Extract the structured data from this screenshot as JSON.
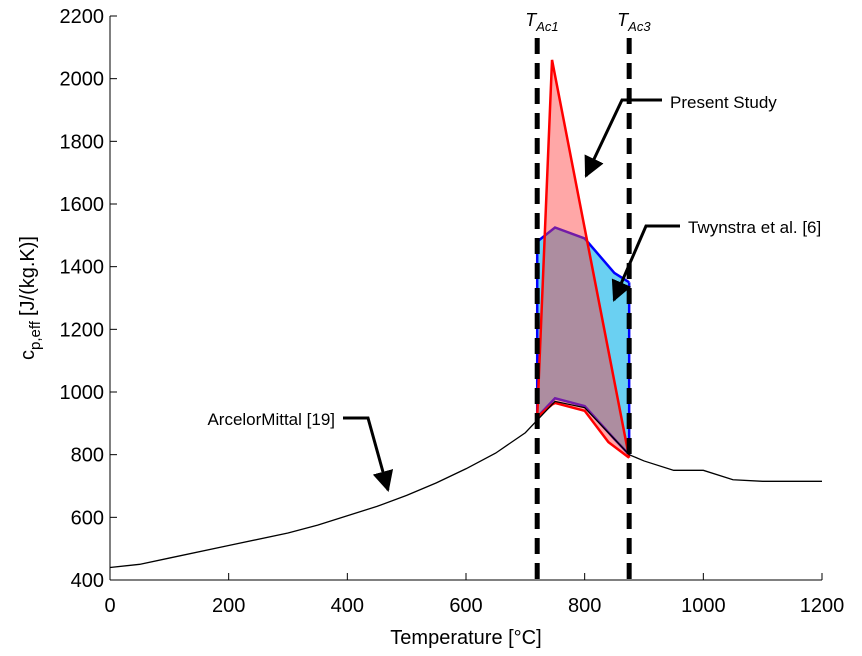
{
  "chart_data": {
    "type": "line",
    "xlabel": "Temperature [°C]",
    "ylabel": {
      "symbol": "c",
      "sub": "p,eff",
      "unit": "[J/(kg.K)]"
    },
    "xlim": [
      0,
      1200
    ],
    "ylim": [
      400,
      2200
    ],
    "xticks": [
      0,
      200,
      400,
      600,
      800,
      1000,
      1200
    ],
    "yticks": [
      400,
      600,
      800,
      1000,
      1200,
      1400,
      1600,
      1800,
      2000,
      2200
    ],
    "series": [
      {
        "name": "ArcelorMittal [19]",
        "color": "#000000",
        "x": [
          0,
          50,
          100,
          200,
          300,
          350,
          400,
          450,
          500,
          550,
          600,
          650,
          700,
          720,
          750,
          800,
          850,
          875,
          900,
          950,
          1000,
          1050,
          1100,
          1200
        ],
        "values": [
          440,
          450,
          470,
          510,
          550,
          575,
          605,
          635,
          670,
          710,
          755,
          805,
          870,
          910,
          970,
          950,
          850,
          800,
          780,
          750,
          750,
          720,
          715,
          715
        ]
      }
    ],
    "bands": [
      {
        "name": "Twynstra et al. [6]",
        "color": "#0000ff",
        "fill": "#38c0ee",
        "x": [
          720,
          750,
          800,
          850,
          875
        ],
        "upper": [
          1480,
          1525,
          1490,
          1380,
          1350
        ],
        "lower": [
          920,
          980,
          955,
          850,
          800
        ]
      },
      {
        "name": "Present Study",
        "color": "#ff0000",
        "fill": "#ff3b3b",
        "x": [
          720,
          745,
          750,
          800,
          840,
          875
        ],
        "upper": [
          920,
          2060,
          2011,
          1523,
          1132,
          790
        ],
        "lower": [
          920,
          960,
          965,
          940,
          840,
          790
        ]
      }
    ],
    "vlines": [
      {
        "x": 720,
        "symbol": "T",
        "sub": "Ac1"
      },
      {
        "x": 875,
        "symbol": "T",
        "sub": "Ac3"
      }
    ]
  }
}
